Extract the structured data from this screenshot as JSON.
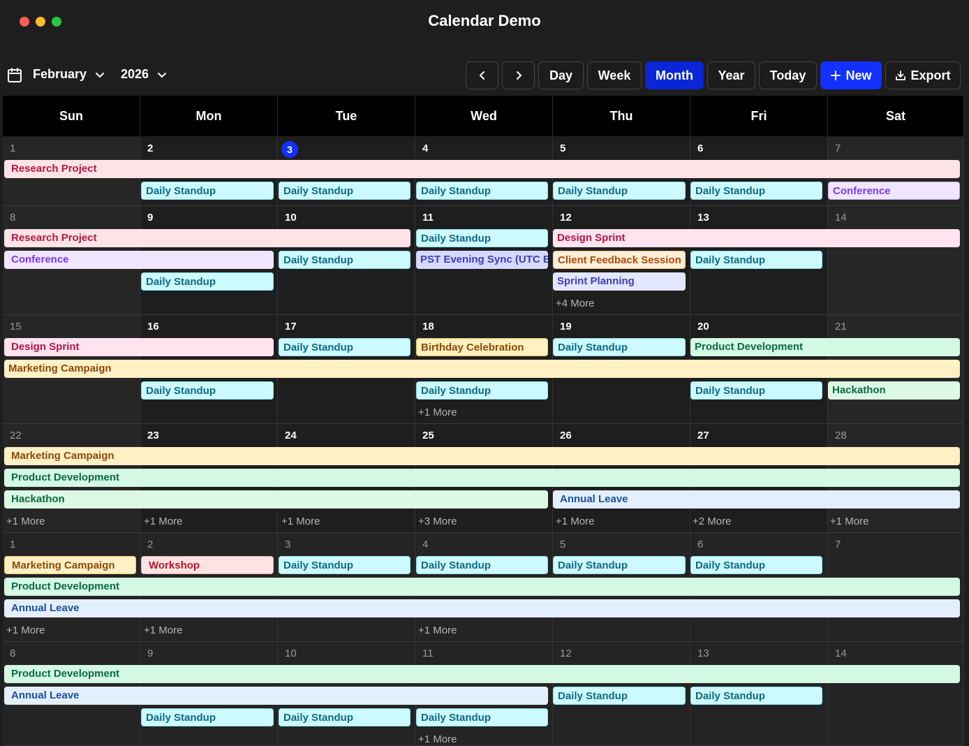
{
  "window": {
    "title": "Calendar Demo"
  },
  "toolbar": {
    "month": "February",
    "year": "2026",
    "prev_label": "‹",
    "next_label": "›",
    "views": [
      "Day",
      "Week",
      "Month",
      "Year"
    ],
    "active_view": "Month",
    "today_label": "Today",
    "new_label": "New",
    "export_label": "Export"
  },
  "weekdays": [
    "Sun",
    "Mon",
    "Tue",
    "Wed",
    "Thu",
    "Fri",
    "Sat"
  ],
  "weeks": [
    [
      "1",
      "2",
      "3",
      "4",
      "5",
      "6",
      "7"
    ],
    [
      "8",
      "9",
      "10",
      "11",
      "12",
      "13",
      "14"
    ],
    [
      "15",
      "16",
      "17",
      "18",
      "19",
      "20",
      "21"
    ],
    [
      "22",
      "23",
      "24",
      "25",
      "26",
      "27",
      "28"
    ],
    [
      "1",
      "2",
      "3",
      "4",
      "5",
      "6",
      "7"
    ],
    [
      "8",
      "9",
      "10",
      "11",
      "12",
      "13",
      "14"
    ]
  ],
  "today": "3",
  "events": {
    "research_project": "Research Project",
    "daily_standup": "Daily Standup",
    "conference": "Conference",
    "design_sprint": "Design Sprint",
    "pst_sync": "PST Evening Sync (UTC B",
    "client_feedback": "Client Feedback Session",
    "sprint_planning": "Sprint Planning",
    "birthday": "Birthday Celebration",
    "product_development": "Product Development",
    "marketing_campaign": "Marketing Campaign",
    "hackathon": "Hackathon",
    "annual_leave": "Annual Leave",
    "workshop": "Workshop"
  },
  "more": {
    "m1": "+1 More",
    "m2": "+2 More",
    "m3": "+3 More",
    "m4": "+4 More"
  }
}
